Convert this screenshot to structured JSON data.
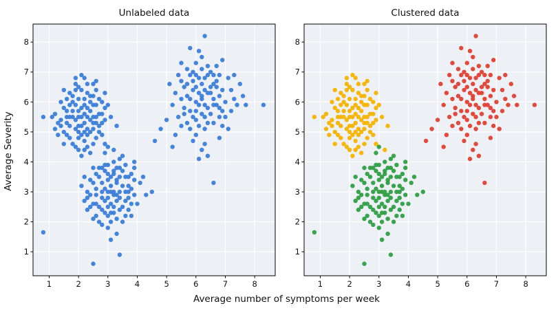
{
  "figure": {
    "background": "#ffffff",
    "panel_background": "#edf0f5",
    "grid_color": "#ffffff",
    "spine_color": "#000000",
    "tick_text_color": "#111111"
  },
  "chart_data": {
    "type": "scatter",
    "xlabel": "Average number of symptoms per week",
    "ylabel": "Average Severity",
    "xlim": [
      0.45,
      8.7
    ],
    "ylim": [
      0.2,
      8.6
    ],
    "xticks": [
      1,
      2,
      3,
      4,
      5,
      6,
      7,
      8
    ],
    "yticks": [
      1,
      2,
      3,
      4,
      5,
      6,
      7,
      8
    ],
    "grid": true,
    "panels": [
      {
        "title": "Unlabeled data",
        "coloring": "single",
        "color": "#3b7dd8"
      },
      {
        "title": "Clustered data",
        "coloring": "by_cluster"
      }
    ],
    "clusters": [
      {
        "name": "cluster-yellow",
        "color": "#f6b300",
        "points": [
          [
            1.6,
            5.5
          ],
          [
            2.0,
            5.2
          ],
          [
            2.3,
            5.8
          ],
          [
            1.8,
            6.0
          ],
          [
            2.5,
            5.1
          ],
          [
            1.4,
            5.4
          ],
          [
            2.1,
            4.9
          ],
          [
            2.7,
            5.6
          ],
          [
            1.9,
            5.9
          ],
          [
            2.2,
            5.3
          ],
          [
            1.5,
            5.0
          ],
          [
            2.4,
            6.2
          ],
          [
            2.0,
            6.5
          ],
          [
            1.7,
            5.2
          ],
          [
            2.6,
            4.8
          ],
          [
            2.9,
            5.4
          ],
          [
            1.2,
            5.6
          ],
          [
            2.2,
            6.8
          ],
          [
            1.8,
            4.6
          ],
          [
            2.5,
            5.9
          ],
          [
            2.1,
            5.5
          ],
          [
            1.6,
            6.1
          ],
          [
            2.8,
            6.0
          ],
          [
            2.3,
            4.5
          ],
          [
            1.9,
            5.1
          ],
          [
            2.0,
            5.7
          ],
          [
            2.6,
            6.4
          ],
          [
            1.3,
            5.3
          ],
          [
            2.4,
            5.0
          ],
          [
            2.2,
            4.7
          ],
          [
            1.7,
            6.3
          ],
          [
            2.9,
            5.8
          ],
          [
            2.1,
            6.9
          ],
          [
            1.5,
            5.8
          ],
          [
            2.7,
            5.2
          ],
          [
            2.3,
            5.5
          ],
          [
            1.8,
            5.5
          ],
          [
            2.0,
            4.4
          ],
          [
            2.5,
            6.6
          ],
          [
            1.1,
            5.5
          ],
          [
            2.2,
            5.9
          ],
          [
            1.9,
            6.6
          ],
          [
            2.6,
            5.5
          ],
          [
            1.6,
            4.9
          ],
          [
            2.4,
            5.4
          ],
          [
            2.8,
            4.9
          ],
          [
            1.4,
            6.0
          ],
          [
            2.1,
            5.2
          ],
          [
            2.3,
            6.3
          ],
          [
            1.7,
            4.8
          ],
          [
            2.0,
            6.1
          ],
          [
            2.5,
            4.6
          ],
          [
            0.8,
            5.5
          ],
          [
            1.9,
            5.4
          ],
          [
            2.7,
            6.1
          ],
          [
            2.2,
            5.0
          ],
          [
            1.5,
            6.4
          ],
          [
            2.9,
            6.3
          ],
          [
            2.4,
            5.7
          ],
          [
            1.8,
            5.7
          ],
          [
            2.1,
            4.2
          ],
          [
            2.6,
            5.9
          ],
          [
            1.3,
            4.9
          ],
          [
            2.3,
            5.1
          ],
          [
            2.0,
            5.5
          ],
          [
            1.6,
            5.7
          ],
          [
            2.8,
            5.3
          ],
          [
            2.2,
            6.1
          ],
          [
            1.9,
            4.5
          ],
          [
            2.5,
            5.5
          ],
          [
            3.1,
            5.5
          ],
          [
            1.7,
            5.9
          ],
          [
            2.4,
            4.3
          ],
          [
            2.1,
            6.4
          ],
          [
            1.4,
            5.2
          ],
          [
            2.6,
            6.7
          ],
          [
            2.3,
            4.9
          ],
          [
            1.8,
            6.2
          ],
          [
            2.0,
            5.0
          ],
          [
            3.3,
            5.2
          ],
          [
            2.2,
            5.6
          ],
          [
            1.6,
            5.3
          ],
          [
            2.9,
            4.6
          ],
          [
            2.5,
            6.2
          ],
          [
            1.9,
            6.8
          ],
          [
            2.7,
            5.0
          ],
          [
            2.1,
            5.8
          ],
          [
            1.2,
            5.1
          ],
          [
            2.4,
            6.0
          ],
          [
            2.8,
            5.6
          ],
          [
            1.5,
            4.6
          ],
          [
            2.3,
            6.6
          ],
          [
            2.0,
            4.8
          ],
          [
            3.0,
            5.9
          ],
          [
            1.7,
            5.5
          ],
          [
            2.6,
            5.3
          ],
          [
            2.2,
            4.4
          ],
          [
            1.9,
            6.4
          ],
          [
            2.5,
            5.3
          ],
          [
            3.2,
            4.4
          ]
        ]
      },
      {
        "name": "cluster-green",
        "color": "#2f9e44",
        "points": [
          [
            3.0,
            3.0
          ],
          [
            3.4,
            2.8
          ],
          [
            2.8,
            3.3
          ],
          [
            3.6,
            3.5
          ],
          [
            2.5,
            2.6
          ],
          [
            3.2,
            2.3
          ],
          [
            3.8,
            3.1
          ],
          [
            2.9,
            3.7
          ],
          [
            3.3,
            3.3
          ],
          [
            3.1,
            2.0
          ],
          [
            2.6,
            3.1
          ],
          [
            3.5,
            2.5
          ],
          [
            3.0,
            3.9
          ],
          [
            2.4,
            2.9
          ],
          [
            3.7,
            2.8
          ],
          [
            3.2,
            3.6
          ],
          [
            2.8,
            2.4
          ],
          [
            3.9,
            3.4
          ],
          [
            3.4,
            3.0
          ],
          [
            2.7,
            3.5
          ],
          [
            3.1,
            3.2
          ],
          [
            3.6,
            2.2
          ],
          [
            2.3,
            3.0
          ],
          [
            3.3,
            2.7
          ],
          [
            3.0,
            2.5
          ],
          [
            2.9,
            3.1
          ],
          [
            3.8,
            2.6
          ],
          [
            2.6,
            2.2
          ],
          [
            3.5,
            3.7
          ],
          [
            3.2,
            3.0
          ],
          [
            2.2,
            2.7
          ],
          [
            3.4,
            3.8
          ],
          [
            3.0,
            1.8
          ],
          [
            2.8,
            2.8
          ],
          [
            3.7,
            3.2
          ],
          [
            3.1,
            3.5
          ],
          [
            2.5,
            3.3
          ],
          [
            3.9,
            2.9
          ],
          [
            3.3,
            2.1
          ],
          [
            2.7,
            2.5
          ],
          [
            3.2,
            4.0
          ],
          [
            3.6,
            3.0
          ],
          [
            2.4,
            3.4
          ],
          [
            3.0,
            2.8
          ],
          [
            3.5,
            2.0
          ],
          [
            2.9,
            3.9
          ],
          [
            3.8,
            3.6
          ],
          [
            2.6,
            2.9
          ],
          [
            3.3,
            3.4
          ],
          [
            3.1,
            2.6
          ],
          [
            2.1,
            3.2
          ],
          [
            3.7,
            2.4
          ],
          [
            3.4,
            4.1
          ],
          [
            2.8,
            1.9
          ],
          [
            3.2,
            2.9
          ],
          [
            3.0,
            3.4
          ],
          [
            2.5,
            2.1
          ],
          [
            3.9,
            3.8
          ],
          [
            3.5,
            3.2
          ],
          [
            2.7,
            3.8
          ],
          [
            3.3,
            1.6
          ],
          [
            3.1,
            3.0
          ],
          [
            2.3,
            2.4
          ],
          [
            3.6,
            3.9
          ],
          [
            3.0,
            2.2
          ],
          [
            2.9,
            2.7
          ],
          [
            4.1,
            3.3
          ],
          [
            2.6,
            3.6
          ],
          [
            3.4,
            2.4
          ],
          [
            3.2,
            3.7
          ],
          [
            4.3,
            2.9
          ],
          [
            2.8,
            3.0
          ],
          [
            3.7,
            3.5
          ],
          [
            3.1,
            1.4
          ],
          [
            2.4,
            2.5
          ],
          [
            3.4,
            0.9
          ],
          [
            3.3,
            2.9
          ],
          [
            2.2,
            3.5
          ],
          [
            3.0,
            3.6
          ],
          [
            3.8,
            2.2
          ],
          [
            2.7,
            2.0
          ],
          [
            3.6,
            2.7
          ],
          [
            3.2,
            2.5
          ],
          [
            2.9,
            4.3
          ],
          [
            3.4,
            3.5
          ],
          [
            4.5,
            3.0
          ],
          [
            2.5,
            3.8
          ],
          [
            3.1,
            2.3
          ],
          [
            3.9,
            4.0
          ],
          [
            2.8,
            3.8
          ],
          [
            3.3,
            3.8
          ],
          [
            2.6,
            2.6
          ],
          [
            3.5,
            4.2
          ],
          [
            3.0,
            4.5
          ],
          [
            4.0,
            2.6
          ],
          [
            2.3,
            2.8
          ],
          [
            3.7,
            3.0
          ],
          [
            2.5,
            0.6
          ],
          [
            2.9,
            2.3
          ],
          [
            4.2,
            3.5
          ],
          [
            0.8,
            1.65
          ]
        ]
      },
      {
        "name": "cluster-red",
        "color": "#e23f33",
        "points": [
          [
            6.0,
            6.0
          ],
          [
            6.4,
            6.3
          ],
          [
            5.8,
            5.7
          ],
          [
            6.2,
            6.6
          ],
          [
            5.5,
            6.1
          ],
          [
            6.6,
            5.9
          ],
          [
            5.9,
            6.4
          ],
          [
            6.3,
            5.5
          ],
          [
            6.8,
            6.2
          ],
          [
            5.6,
            5.8
          ],
          [
            6.1,
            6.8
          ],
          [
            6.5,
            6.5
          ],
          [
            5.7,
            6.6
          ],
          [
            6.0,
            5.4
          ],
          [
            6.9,
            5.7
          ],
          [
            5.4,
            5.5
          ],
          [
            6.2,
            6.1
          ],
          [
            6.7,
            6.7
          ],
          [
            5.8,
            6.9
          ],
          [
            6.3,
            6.4
          ],
          [
            6.1,
            5.2
          ],
          [
            5.5,
            6.7
          ],
          [
            7.0,
            6.0
          ],
          [
            6.4,
            5.8
          ],
          [
            5.9,
            5.5
          ],
          [
            6.6,
            6.6
          ],
          [
            6.2,
            7.1
          ],
          [
            5.3,
            6.3
          ],
          [
            6.8,
            5.5
          ],
          [
            6.0,
            6.5
          ],
          [
            7.2,
            6.4
          ],
          [
            5.7,
            5.3
          ],
          [
            6.5,
            7.0
          ],
          [
            6.1,
            5.9
          ],
          [
            5.6,
            6.5
          ],
          [
            6.9,
            6.4
          ],
          [
            6.3,
            5.1
          ],
          [
            5.2,
            5.9
          ],
          [
            6.7,
            5.9
          ],
          [
            6.0,
            7.3
          ],
          [
            7.4,
            5.9
          ],
          [
            5.8,
            5.1
          ],
          [
            6.4,
            6.9
          ],
          [
            6.2,
            5.6
          ],
          [
            5.5,
            5.2
          ],
          [
            7.1,
            6.8
          ],
          [
            6.6,
            5.3
          ],
          [
            5.9,
            7.0
          ],
          [
            6.3,
            6.8
          ],
          [
            6.8,
            6.9
          ],
          [
            5.1,
            6.6
          ],
          [
            6.5,
            5.6
          ],
          [
            6.0,
            4.9
          ],
          [
            7.3,
            6.1
          ],
          [
            5.7,
            6.2
          ],
          [
            6.2,
            7.5
          ],
          [
            6.9,
            5.2
          ],
          [
            5.4,
            6.9
          ],
          [
            6.6,
            6.1
          ],
          [
            6.1,
            6.3
          ],
          [
            7.5,
            6.6
          ],
          [
            5.9,
            4.7
          ],
          [
            6.4,
            5.3
          ],
          [
            6.7,
            7.2
          ],
          [
            5.6,
            5.6
          ],
          [
            6.3,
            4.6
          ],
          [
            7.0,
            5.5
          ],
          [
            6.0,
            5.7
          ],
          [
            5.0,
            5.4
          ],
          [
            6.5,
            6.3
          ],
          [
            6.2,
            4.4
          ],
          [
            7.2,
            5.7
          ],
          [
            5.8,
            6.1
          ],
          [
            6.8,
            4.8
          ],
          [
            6.1,
            7.7
          ],
          [
            5.3,
            4.9
          ],
          [
            6.6,
            6.9
          ],
          [
            6.4,
            4.2
          ],
          [
            7.6,
            6.2
          ],
          [
            5.7,
            7.1
          ],
          [
            6.9,
            7.4
          ],
          [
            6.3,
            5.9
          ],
          [
            5.5,
            7.3
          ],
          [
            7.1,
            5.1
          ],
          [
            6.0,
            6.9
          ],
          [
            6.7,
            6.5
          ],
          [
            4.8,
            5.1
          ],
          [
            6.2,
            6.2
          ],
          [
            7.7,
            5.9
          ],
          [
            5.9,
            6.7
          ],
          [
            6.3,
            8.2
          ],
          [
            4.6,
            4.7
          ],
          [
            6.8,
            5.8
          ],
          [
            5.2,
            4.5
          ],
          [
            7.3,
            6.9
          ],
          [
            6.1,
            4.1
          ],
          [
            5.8,
            7.8
          ],
          [
            6.4,
            7.2
          ],
          [
            8.3,
            5.9
          ],
          [
            6.6,
            3.3
          ]
        ]
      }
    ]
  }
}
